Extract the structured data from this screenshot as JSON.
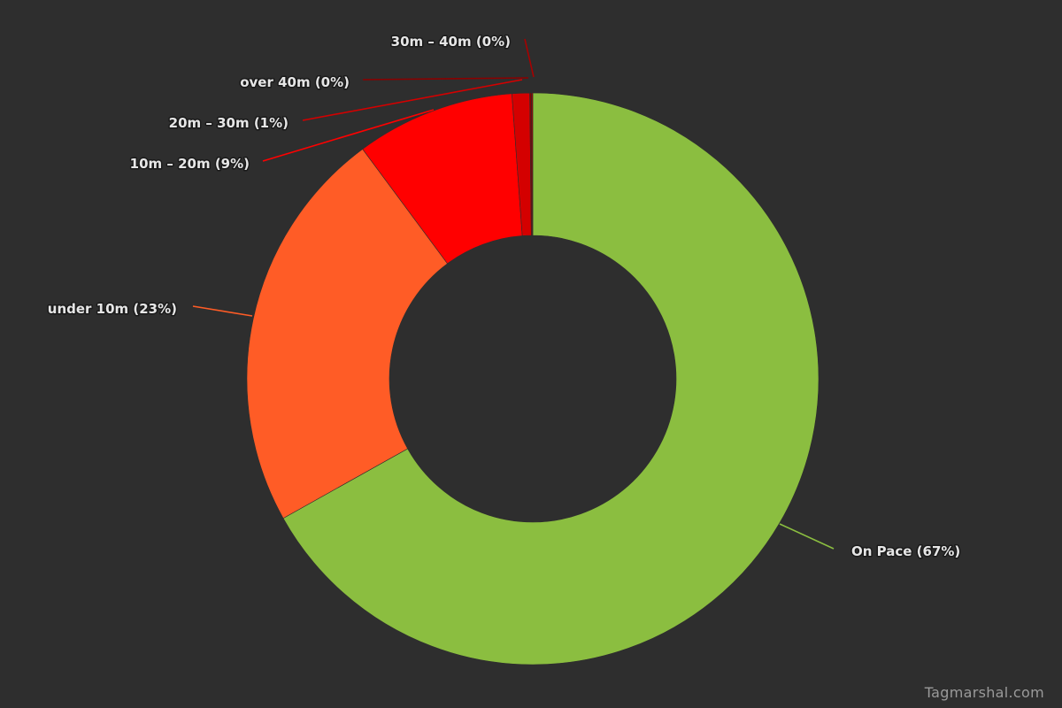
{
  "chart_data": {
    "type": "pie",
    "variant": "donut",
    "title": "",
    "slices": [
      {
        "name": "On Pace",
        "value": 67,
        "label": "On Pace (67%)",
        "color": "#8bbe40"
      },
      {
        "name": "under 10m",
        "value": 23,
        "label": "under 10m (23%)",
        "color": "#ff5c26"
      },
      {
        "name": "10m - 20m",
        "value": 9,
        "label": "10m – 20m (9%)",
        "color": "#ff0000"
      },
      {
        "name": "20m - 30m",
        "value": 1,
        "label": "20m – 30m (1%)",
        "color": "#d40000"
      },
      {
        "name": "over 40m",
        "value": 0,
        "label": "over 40m (0%)",
        "color": "#8a0000"
      },
      {
        "name": "30m - 40m",
        "value": 0,
        "label": "30m – 40m (0%)",
        "color": "#a80000"
      }
    ],
    "legend": "none"
  },
  "credit": "Tagmarshal.com"
}
